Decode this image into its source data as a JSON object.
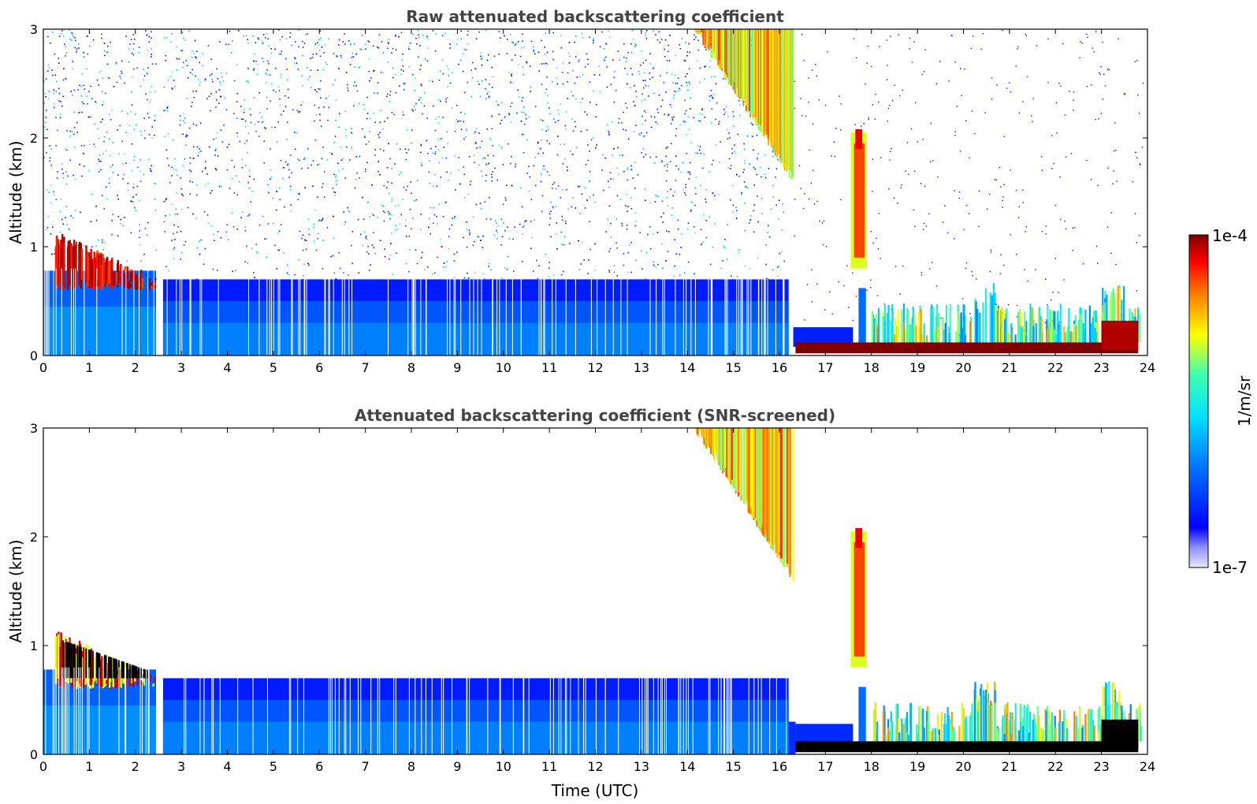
{
  "chart_data": [
    {
      "type": "heatmap",
      "title": "Raw attenuated backscattering coefficient",
      "xlabel": "",
      "ylabel": "Altitude (km)",
      "xlim": [
        0,
        24
      ],
      "ylim": [
        0,
        3
      ],
      "xticks": [
        "0",
        "1",
        "2",
        "3",
        "4",
        "5",
        "6",
        "7",
        "8",
        "9",
        "10",
        "11",
        "12",
        "13",
        "14",
        "15",
        "16",
        "17",
        "18",
        "19",
        "20",
        "21",
        "22",
        "23",
        "24"
      ],
      "yticks": [
        "0",
        "1",
        "2",
        "3"
      ],
      "color_scale": "log",
      "grid": false,
      "features": [
        {
          "time_utc": [
            0.3,
            2.5
          ],
          "altitude_km": [
            0.6,
            1.15
          ],
          "level": "high"
        },
        {
          "time_utc": [
            14.2,
            16.3
          ],
          "altitude_km": [
            1.5,
            3.0
          ],
          "level": "medium-high"
        },
        {
          "time_utc": [
            17.5,
            17.9
          ],
          "altitude_km": [
            0.8,
            2.1
          ],
          "level": "high"
        },
        {
          "time_utc": [
            16.3,
            23.8
          ],
          "altitude_km": [
            0.0,
            0.15
          ],
          "level": "very-high"
        }
      ]
    },
    {
      "type": "heatmap",
      "title": "Attenuated backscattering coefficient (SNR-screened)",
      "xlabel": "Time (UTC)",
      "ylabel": "Altitude (km)",
      "xlim": [
        0,
        24
      ],
      "ylim": [
        0,
        3
      ],
      "xticks": [
        "0",
        "1",
        "2",
        "3",
        "4",
        "5",
        "6",
        "7",
        "8",
        "9",
        "10",
        "11",
        "12",
        "13",
        "14",
        "15",
        "16",
        "17",
        "18",
        "19",
        "20",
        "21",
        "22",
        "23",
        "24"
      ],
      "yticks": [
        "0",
        "1",
        "2",
        "3"
      ],
      "color_scale": "log",
      "grid": false
    }
  ],
  "colorbar": {
    "label": "1/m/sr",
    "max_label": "1e-4",
    "min_label": "1e-7",
    "colormap": "jet",
    "colors": {
      "low": "#e0e0ff",
      "blue": "#0000ff",
      "cyan": "#00ffff",
      "yellow": "#ffff00",
      "red": "#ff0000",
      "high": "#800000"
    }
  }
}
